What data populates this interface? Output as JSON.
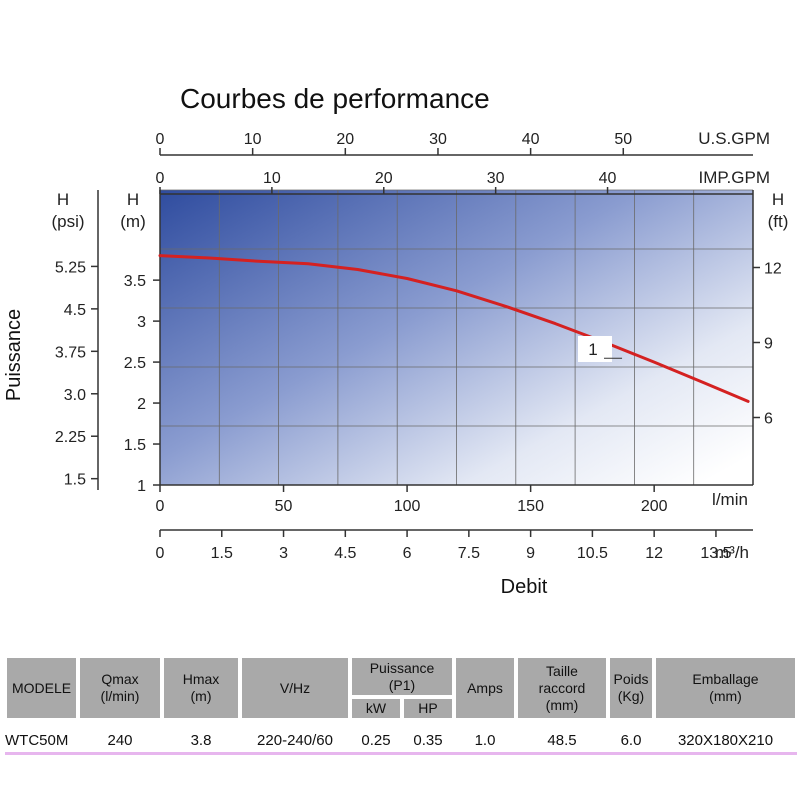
{
  "chart_data": {
    "type": "line",
    "title": "Courbes de performance",
    "xlabel": "Debit",
    "ylabel": "Puissance",
    "x_axes": {
      "lmin": {
        "unit": "l/min",
        "ticks": [
          "0",
          "50",
          "100",
          "150",
          "200"
        ],
        "range": [
          0,
          240
        ]
      },
      "m3h": {
        "unit": "m³/h",
        "ticks": [
          "0",
          "1.5",
          "3",
          "4.5",
          "6",
          "7.5",
          "9",
          "10.5",
          "12",
          "13.5"
        ],
        "range": [
          0,
          14.4
        ]
      },
      "usgpm": {
        "unit": "U.S.GPM",
        "ticks": [
          "0",
          "10",
          "20",
          "30",
          "40",
          "50"
        ],
        "range": [
          0,
          64
        ]
      },
      "impgpm": {
        "unit": "IMP.GPM",
        "ticks": [
          "0",
          "10",
          "20",
          "30",
          "40"
        ],
        "range": [
          0,
          53
        ]
      }
    },
    "y_axes": {
      "m": {
        "label": "H",
        "unit": "(m)",
        "ticks": [
          "1",
          "1.5",
          "2",
          "2.5",
          "3",
          "3.5"
        ],
        "range": [
          1,
          4.6
        ]
      },
      "psi": {
        "label": "H",
        "unit": "(psi)",
        "ticks": [
          "1.5",
          "2.25",
          "3.0",
          "3.75",
          "4.5",
          "5.25"
        ],
        "range": [
          1.3,
          6.6
        ]
      },
      "ft": {
        "label": "H",
        "unit": "(ft)",
        "ticks": [
          "6",
          "9",
          "12"
        ],
        "range": [
          3.3,
          15.1
        ]
      }
    },
    "series": [
      {
        "name": "1",
        "x_lmin": [
          0,
          20,
          40,
          60,
          80,
          100,
          120,
          140,
          160,
          180,
          200,
          220,
          238
        ],
        "y_m": [
          3.8,
          3.77,
          3.73,
          3.7,
          3.63,
          3.52,
          3.37,
          3.18,
          2.97,
          2.74,
          2.5,
          2.25,
          2.02
        ]
      }
    ],
    "grid": true,
    "gradient_background": {
      "from": "#3a56a6",
      "to": "#ffffff"
    },
    "curve_color": "#d42121"
  },
  "table": {
    "headers": {
      "modele": "MODELE",
      "qmax": "Qmax\n(l/min)",
      "hmax": "Hmax\n(m)",
      "vhz": "V/Hz",
      "puissance": "Puissance\n(P1)",
      "kw": "kW",
      "hp": "HP",
      "amps": "Amps",
      "taille": "Taille\nraccord\n(mm)",
      "poids": "Poids\n(Kg)",
      "emballage": "Emballage\n(mm)"
    },
    "row": {
      "modele": "WTC50M",
      "qmax": "240",
      "hmax": "3.8",
      "vhz": "220-240/60",
      "kw": "0.25",
      "hp": "0.35",
      "amps": "1.0",
      "taille": "48.5",
      "poids": "6.0",
      "emballage": "320X180X210"
    }
  }
}
